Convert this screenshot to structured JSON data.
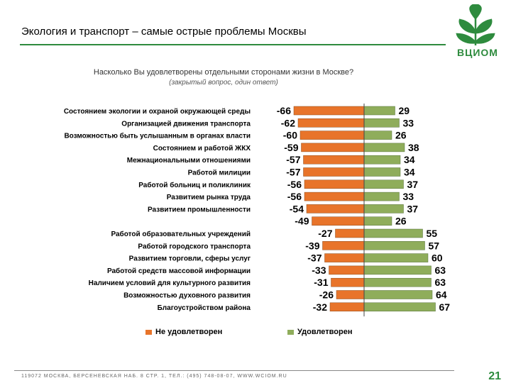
{
  "header": {
    "title": "Экология и транспорт – самые острые проблемы Москвы",
    "logo_text": "ВЦИОМ"
  },
  "question": "Насколько Вы удовлетворены отдельными сторонами жизни в Москве?",
  "question_note": "(закрытый вопрос, один ответ)",
  "footer": {
    "address": "119072 МОСКВА, БЕРСЕНЕВСКАЯ НАБ. 8 СТР. 1, ТЕЛ.: (495) 748-08-07, WWW.WCIOM.RU",
    "page_number": "21"
  },
  "colors": {
    "negative": "#e8742a",
    "positive": "#8fad5b",
    "accent": "#2e8b3e"
  },
  "chart_data": {
    "type": "bar",
    "orientation": "horizontal-diverging",
    "categories": [
      "Состоянием экологии и охраной окружающей среды",
      "Организацией движения транспорта",
      "Возможностью быть услышанным  в органах власти",
      "Состоянием и работой ЖКХ",
      "Межнациональными отношениями",
      "Работой милиции",
      "Работой больниц и поликлиник",
      "Развитием рынка труда",
      "Развитием промышленности",
      "",
      "Работой образовательных  учреждений",
      "Работой городского транспорта",
      "Развитием торговли, сферы услуг",
      "Работой средств массовой информации",
      "Наличием условий для культурного развития",
      "Возможностью духовного развития",
      "Благоустройством района"
    ],
    "series": [
      {
        "name": "Не удовлетворен",
        "values": [
          -66,
          -62,
          -60,
          -59,
          -57,
          -57,
          -56,
          -56,
          -54,
          -49,
          -27,
          -39,
          -37,
          -33,
          -31,
          -26,
          -32
        ]
      },
      {
        "name": "Удовлетворен",
        "values": [
          29,
          33,
          26,
          38,
          34,
          34,
          37,
          33,
          37,
          26,
          55,
          57,
          60,
          63,
          63,
          64,
          67
        ]
      }
    ],
    "legend_position": "bottom"
  }
}
